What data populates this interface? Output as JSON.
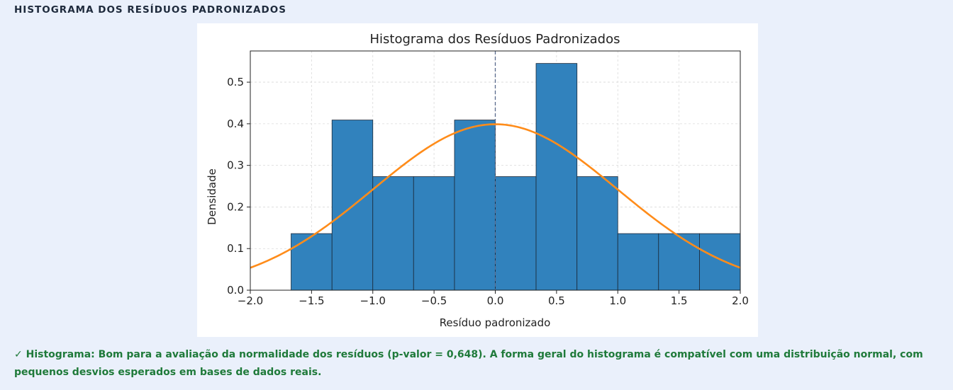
{
  "section": {
    "title": "HISTOGRAMA DOS RESÍDUOS PADRONIZADOS"
  },
  "chart_data": {
    "type": "bar",
    "title": "Histograma dos Resíduos Padronizados",
    "xlabel": "Resíduo padronizado",
    "ylabel": "Densidade",
    "xlim": [
      -2.0,
      2.0
    ],
    "ylim": [
      0,
      0.575
    ],
    "xticks": [
      "−2.0",
      "−1.5",
      "−1.0",
      "−0.5",
      "0.0",
      "0.5",
      "1.0",
      "1.5",
      "2.0"
    ],
    "xtick_values": [
      -2.0,
      -1.5,
      -1.0,
      -0.5,
      0.0,
      0.5,
      1.0,
      1.5,
      2.0
    ],
    "yticks": [
      "0.0",
      "0.1",
      "0.2",
      "0.3",
      "0.4",
      "0.5"
    ],
    "ytick_values": [
      0.0,
      0.1,
      0.2,
      0.3,
      0.4,
      0.5
    ],
    "bin_edges": [
      -1.667,
      -1.333,
      -1.0,
      -0.667,
      -0.333,
      0.0,
      0.333,
      0.667,
      1.0,
      1.333,
      1.667,
      2.0
    ],
    "values": [
      0.136,
      0.409,
      0.273,
      0.273,
      0.409,
      0.273,
      0.545,
      0.273,
      0.136,
      0.136,
      0.136
    ],
    "curve": "normal density (mean 0, sd 1)",
    "vline_x": 0.0,
    "grid": true,
    "colors": {
      "bar": "#3182bd",
      "bar_edge": "#1b2838",
      "curve": "#ff8c1a",
      "vline": "#5a6b8c"
    }
  },
  "note": {
    "text": "✓ Histograma: Bom para a avaliação da normalidade dos resíduos (p-valor = 0,648). A forma geral do histograma é compatível com uma distribuição normal, com pequenos desvios esperados em bases de dados reais."
  }
}
